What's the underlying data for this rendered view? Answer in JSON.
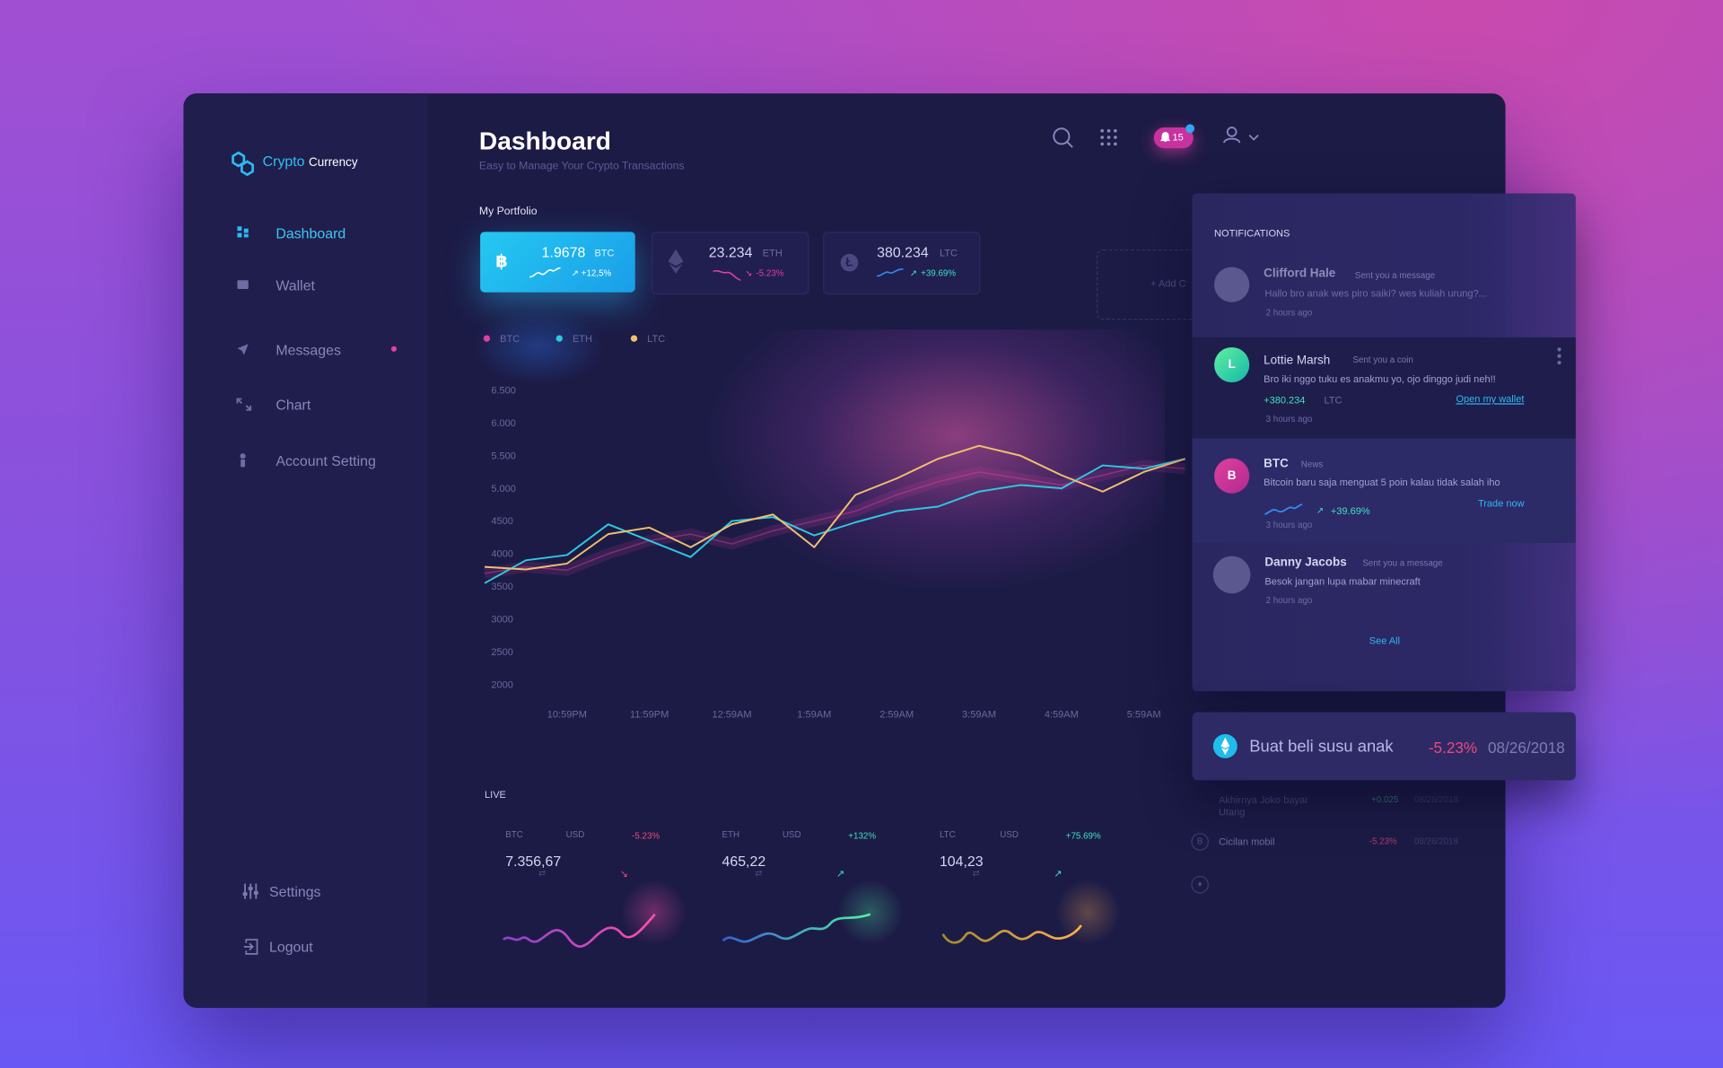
{
  "brand": {
    "primary": "Crypto",
    "secondary": "Currency"
  },
  "sidebar": {
    "nav": [
      "Dashboard",
      "Wallet",
      "Messages",
      "Chart",
      "Account Setting"
    ],
    "footer": [
      "Settings",
      "Logout"
    ]
  },
  "header": {
    "title": "Dashboard",
    "subtitle": "Easy to Manage Your Crypto Transactions",
    "notification_count": "15"
  },
  "portfolio": {
    "label": "My Portfolio",
    "cards": [
      {
        "amount": "1.9678",
        "symbol": "BTC",
        "change": "+12,5%"
      },
      {
        "amount": "23.234",
        "symbol": "ETH",
        "change": "-5.23%"
      },
      {
        "amount": "380.234",
        "symbol": "LTC",
        "change": "+39.69%"
      }
    ],
    "add": "+ Add C"
  },
  "chart_data": {
    "type": "line",
    "x": [
      null,
      null,
      "10:59PM",
      null,
      "11:59PM",
      null,
      "12:59AM",
      null,
      "1:59AM",
      null,
      "2:59AM",
      null,
      "3:59AM",
      null,
      "4:59AM",
      null,
      "5:59AM",
      null
    ],
    "ylim": [
      2000,
      6500
    ],
    "yticks": [
      {
        "value": 6500,
        "label": "6.500"
      },
      {
        "value": 6000,
        "label": "6.000"
      },
      {
        "value": 5500,
        "label": "5.500"
      },
      {
        "value": 5000,
        "label": "5.000"
      },
      4500,
      4000,
      3500,
      3000,
      2500,
      2000
    ],
    "series": [
      {
        "name": "BTC",
        "color": "#e0409e",
        "values": [
          3700,
          3800,
          3750,
          4000,
          4200,
          4300,
          4150,
          4350,
          4500,
          4650,
          4900,
          5100,
          5250,
          5150,
          5050,
          5200,
          5350,
          5300
        ]
      },
      {
        "name": "ETH",
        "color": "#2ec8e0",
        "values": [
          3550,
          3900,
          3980,
          4450,
          4200,
          3950,
          4500,
          4560,
          4280,
          4480,
          4650,
          4720,
          4950,
          5050,
          5000,
          5350,
          5300,
          5450
        ]
      },
      {
        "name": "LTC",
        "color": "#f0c070",
        "values": [
          3800,
          3760,
          3850,
          4300,
          4400,
          4100,
          4450,
          4600,
          4100,
          4900,
          5150,
          5450,
          5650,
          5500,
          5200,
          4950,
          5250,
          5450
        ]
      }
    ]
  },
  "live": {
    "label": "LIVE",
    "items": [
      {
        "base": "BTC",
        "quote": "USD",
        "change": "-5.23%",
        "price": "7.356,67"
      },
      {
        "base": "ETH",
        "quote": "USD",
        "change": "+132%",
        "price": "465,22"
      },
      {
        "base": "LTC",
        "quote": "USD",
        "change": "+75.69%",
        "price": "104,23"
      }
    ]
  },
  "notifications": {
    "title": "NOTIFICATIONS",
    "items": [
      {
        "name": "Clifford Hale",
        "action": "Sent you a message",
        "message": "Hallo bro anak wes piro saiki? wes kuliah urung?...",
        "time": "2 hours ago"
      },
      {
        "initial": "L",
        "name": "Lottie Marsh",
        "action": "Sent you a coin",
        "message": "Bro iki nggo tuku es anakmu yo, ojo dinggo judi neh!!",
        "amount": "+380.234",
        "unit": "LTC",
        "link": "Open my wallet",
        "time": "3 hours ago"
      },
      {
        "initial": "B",
        "name": "BTC",
        "action": "News",
        "message": "Bitcoin baru saja menguat 5 poin kalau tidak salah iho",
        "change": "+39.69%",
        "link": "Trade now",
        "time": "3 hours ago"
      },
      {
        "name": "Danny Jacobs",
        "action": "Sent you a message",
        "message": "Besok jangan lupa mabar minecraft",
        "time": "2 hours ago"
      }
    ],
    "see_all": "See All"
  },
  "toast": {
    "text": "Buat beli susu anak",
    "change": "-5.23%",
    "date": "08/26/2018"
  },
  "transactions": [
    {
      "text": "Akhirnya Joko bayar Utang",
      "change": "+0.025",
      "date": "08/26/2018"
    },
    {
      "text": "Cicilan mobil",
      "change": "-5.23%",
      "date": "08/26/2018"
    }
  ]
}
